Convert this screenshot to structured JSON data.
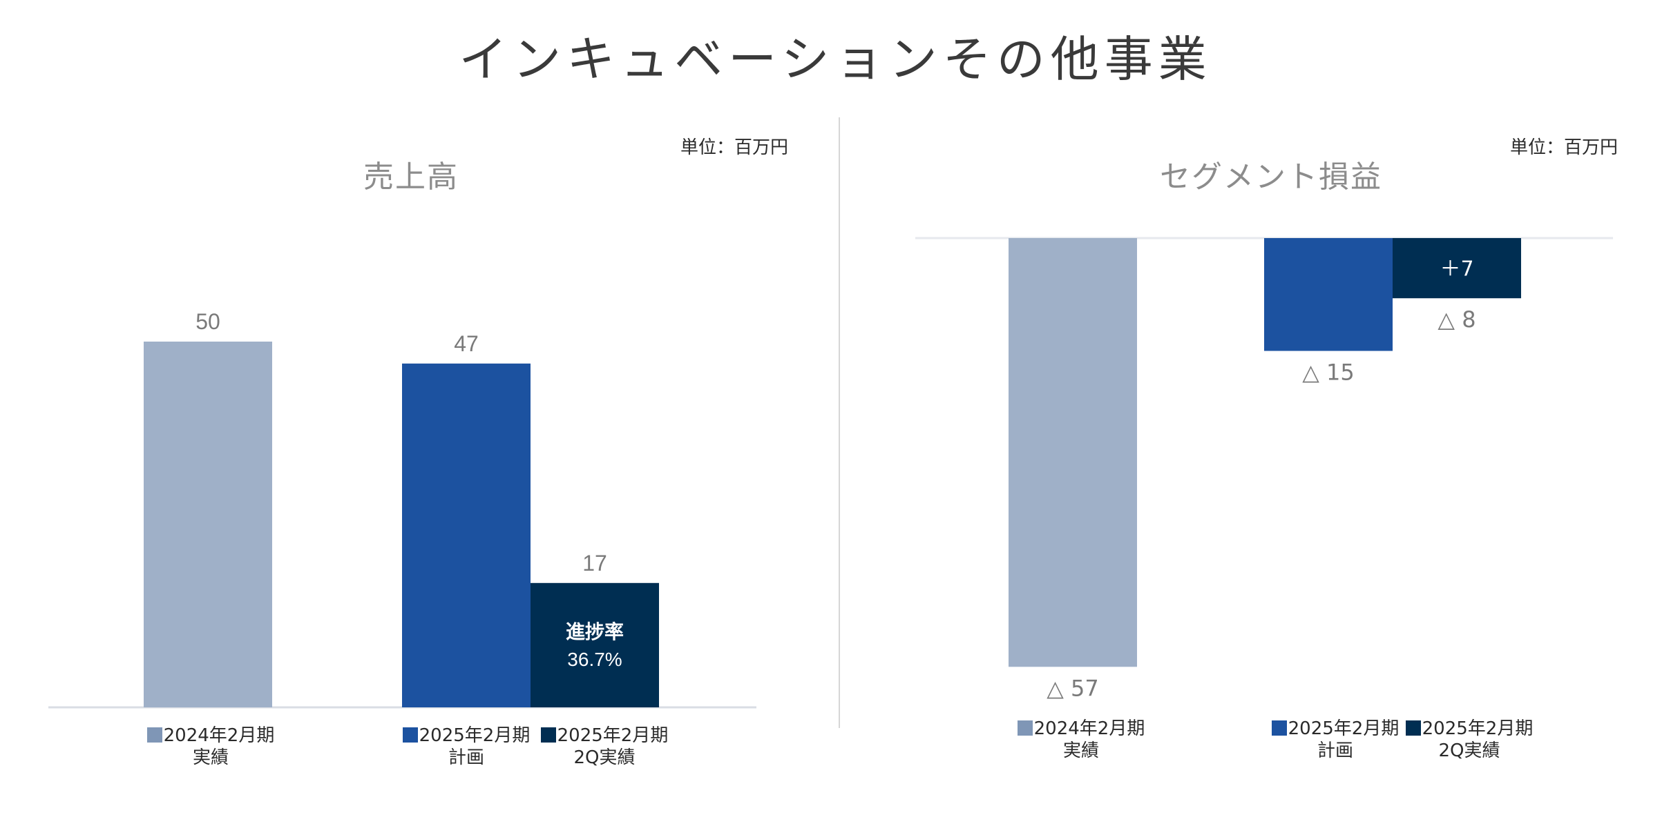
{
  "title": "インキュベーションその他事業",
  "colors": {
    "actual_2024": "#9fb0c8",
    "plan_2025": "#1c52a0",
    "q2_2025": "#002e52",
    "label_gray": "#7a7a7a",
    "axis": "#d9dde4"
  },
  "chart_data": [
    {
      "type": "bar",
      "title": "売上高",
      "unit": "単位：百万円",
      "categories": [
        "2024年2月期 実績",
        "2025年2月期 計画",
        "2025年2月期 2Q実績"
      ],
      "series": [
        {
          "name": "2024年2月期 実績",
          "value": 50,
          "label": "50"
        },
        {
          "name": "2025年2月期 計画",
          "value": 47,
          "label": "47"
        },
        {
          "name": "2025年2月期 2Q実績",
          "value": 17,
          "label": "17"
        }
      ],
      "annotation": {
        "line1": "進捗率",
        "line2": "36.7%"
      },
      "ylim": [
        0,
        50
      ]
    },
    {
      "type": "bar",
      "title": "セグメント損益",
      "unit": "単位：百万円",
      "categories": [
        "2024年2月期 実績",
        "2025年2月期 計画",
        "2025年2月期 2Q実績"
      ],
      "series": [
        {
          "name": "2024年2月期 実績",
          "value": -57,
          "label": "△ 57"
        },
        {
          "name": "2025年2月期 計画",
          "value": -15,
          "label": "△ 15"
        },
        {
          "name": "2025年2月期 2Q実績",
          "value": -8,
          "label": "△ 8"
        }
      ],
      "annotation": {
        "line1": "＋7"
      },
      "ylim": [
        -57,
        0
      ]
    }
  ],
  "legend": {
    "left": [
      {
        "line1": "2024年2月期",
        "line2": "実績"
      },
      {
        "line1": "2025年2月期",
        "line2": "計画"
      },
      {
        "line1": "2025年2月期",
        "line2": "2Q実績"
      }
    ],
    "right": [
      {
        "line1": "2024年2月期",
        "line2": "実績"
      },
      {
        "line1": "2025年2月期",
        "line2": "計画"
      },
      {
        "line1": "2025年2月期",
        "line2": "2Q実績"
      }
    ]
  }
}
